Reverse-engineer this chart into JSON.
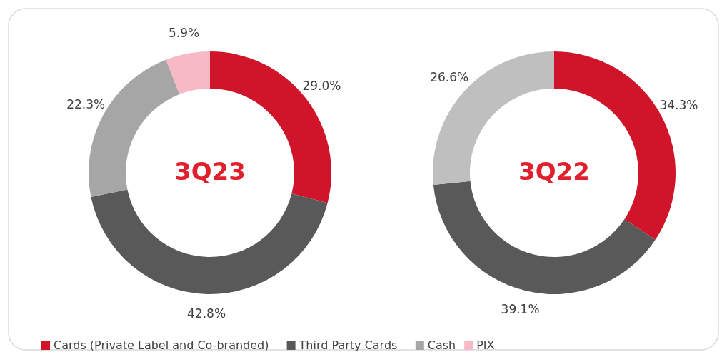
{
  "chart_data": [
    {
      "type": "donut",
      "title": "3Q23",
      "categories": [
        "Cards (Private Label and Co-branded)",
        "Third Party Cards",
        "Cash",
        "PIX"
      ],
      "values": [
        29.0,
        42.8,
        22.3,
        5.9
      ],
      "value_labels": [
        "29.0%",
        "42.8%",
        "22.3%",
        "5.9%"
      ],
      "colors": [
        "#d0152a",
        "#595959",
        "#a6a6a6",
        "#f7b9c6"
      ],
      "legend": "bottom"
    },
    {
      "type": "donut",
      "title": "3Q22",
      "categories": [
        null,
        null,
        null
      ],
      "values": [
        34.3,
        39.1,
        26.6
      ],
      "value_labels": [
        "34.3%",
        "39.1%",
        "26.6%"
      ],
      "colors": [
        "#d0152a",
        "#595959",
        "#bfbfbf"
      ]
    }
  ]
}
